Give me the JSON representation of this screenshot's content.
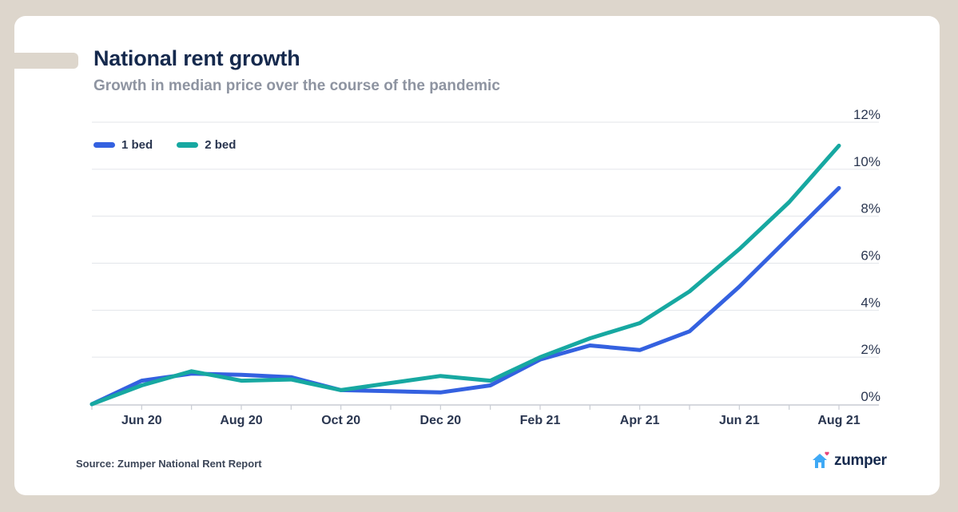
{
  "header": {
    "title": "National rent growth",
    "subtitle": "Growth in median price over the course of the pandemic"
  },
  "footer": {
    "source": "Source: Zumper National Rent Report",
    "logo_text": "zumper"
  },
  "colors": {
    "series_1bed": "#3461e0",
    "series_2bed": "#17a8a1",
    "title": "#15294d",
    "logo_house": "#3fa9f5",
    "logo_heart": "#e8457a"
  },
  "chart_data": {
    "type": "line",
    "x": [
      "May 20",
      "Jun 20",
      "Jul 20",
      "Aug 20",
      "Sep 20",
      "Oct 20",
      "Nov 20",
      "Dec 20",
      "Jan 21",
      "Feb 21",
      "Mar 21",
      "Apr 21",
      "May 21",
      "Jun 21",
      "Jul 21",
      "Aug 21"
    ],
    "x_tick_labels": [
      "Jun 20",
      "Aug 20",
      "Oct 20",
      "Dec 20",
      "Feb 21",
      "Apr 21",
      "Jun 21",
      "Aug 21"
    ],
    "series": [
      {
        "name": "1 bed",
        "values": [
          0,
          1.0,
          1.3,
          1.25,
          1.15,
          0.6,
          0.55,
          0.5,
          0.8,
          1.9,
          2.5,
          2.3,
          3.1,
          5.0,
          7.1,
          9.2
        ]
      },
      {
        "name": "2 bed",
        "values": [
          0,
          0.8,
          1.4,
          1.0,
          1.05,
          0.6,
          0.9,
          1.2,
          1.0,
          2.0,
          2.8,
          3.45,
          4.8,
          6.6,
          8.6,
          11.0
        ]
      }
    ],
    "y_ticks": [
      0,
      2,
      4,
      6,
      8,
      10,
      12
    ],
    "y_tick_labels": [
      "0%",
      "2%",
      "4%",
      "6%",
      "8%",
      "10%",
      "12%"
    ],
    "ylim": [
      0,
      12
    ],
    "grid": true,
    "legend": "top-left"
  }
}
